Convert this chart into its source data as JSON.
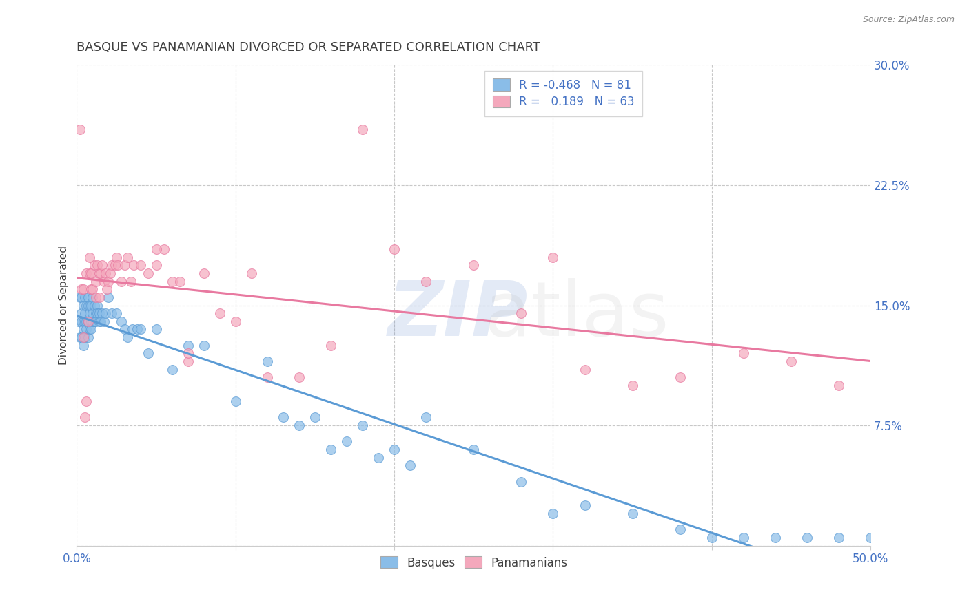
{
  "title": "BASQUE VS PANAMANIAN DIVORCED OR SEPARATED CORRELATION CHART",
  "source": "Source: ZipAtlas.com",
  "ylabel": "Divorced or Separated",
  "xlim": [
    0.0,
    0.5
  ],
  "ylim": [
    0.0,
    0.3
  ],
  "xticks": [
    0.0,
    0.1,
    0.2,
    0.3,
    0.4,
    0.5
  ],
  "yticks": [
    0.0,
    0.075,
    0.15,
    0.225,
    0.3
  ],
  "xticklabels_show": [
    "0.0%",
    "",
    "",
    "",
    "",
    "50.0%"
  ],
  "yticklabels_right": [
    "",
    "7.5%",
    "15.0%",
    "22.5%",
    "30.0%"
  ],
  "legend_r_basque": "-0.468",
  "legend_n_basque": "81",
  "legend_r_panama": "0.189",
  "legend_n_panama": "63",
  "color_basque": "#8abde8",
  "color_panama": "#f4a8bc",
  "color_basque_line": "#5b9bd5",
  "color_panama_line": "#e879a0",
  "grid_color": "#c8c8c8",
  "bg_color": "#ffffff",
  "title_color": "#404040",
  "axis_color": "#4472c4",
  "watermark_color_zip": "#4472c4",
  "watermark_color_atlas": "#b0b0b0",
  "basque_x": [
    0.001,
    0.002,
    0.002,
    0.003,
    0.003,
    0.003,
    0.003,
    0.004,
    0.004,
    0.004,
    0.004,
    0.005,
    0.005,
    0.005,
    0.005,
    0.006,
    0.006,
    0.006,
    0.007,
    0.007,
    0.007,
    0.007,
    0.008,
    0.008,
    0.008,
    0.009,
    0.009,
    0.009,
    0.01,
    0.01,
    0.01,
    0.011,
    0.011,
    0.012,
    0.012,
    0.013,
    0.013,
    0.014,
    0.014,
    0.015,
    0.016,
    0.017,
    0.018,
    0.02,
    0.022,
    0.025,
    0.028,
    0.03,
    0.032,
    0.035,
    0.038,
    0.04,
    0.045,
    0.05,
    0.06,
    0.07,
    0.08,
    0.1,
    0.12,
    0.15,
    0.18,
    0.2,
    0.22,
    0.25,
    0.28,
    0.3,
    0.32,
    0.35,
    0.38,
    0.4,
    0.42,
    0.44,
    0.46,
    0.48,
    0.5,
    0.13,
    0.14,
    0.16,
    0.17,
    0.19,
    0.21
  ],
  "basque_y": [
    0.14,
    0.13,
    0.155,
    0.14,
    0.145,
    0.155,
    0.13,
    0.14,
    0.15,
    0.135,
    0.125,
    0.14,
    0.145,
    0.155,
    0.13,
    0.15,
    0.14,
    0.135,
    0.15,
    0.14,
    0.155,
    0.13,
    0.145,
    0.15,
    0.135,
    0.14,
    0.15,
    0.135,
    0.145,
    0.155,
    0.14,
    0.15,
    0.14,
    0.145,
    0.14,
    0.15,
    0.145,
    0.14,
    0.145,
    0.14,
    0.145,
    0.14,
    0.145,
    0.155,
    0.145,
    0.145,
    0.14,
    0.135,
    0.13,
    0.135,
    0.135,
    0.135,
    0.12,
    0.135,
    0.11,
    0.125,
    0.125,
    0.09,
    0.115,
    0.08,
    0.075,
    0.06,
    0.08,
    0.06,
    0.04,
    0.02,
    0.025,
    0.02,
    0.01,
    0.005,
    0.005,
    0.005,
    0.005,
    0.005,
    0.005,
    0.08,
    0.075,
    0.06,
    0.065,
    0.055,
    0.05
  ],
  "panama_x": [
    0.002,
    0.003,
    0.004,
    0.004,
    0.005,
    0.006,
    0.006,
    0.007,
    0.008,
    0.008,
    0.009,
    0.009,
    0.01,
    0.011,
    0.012,
    0.012,
    0.013,
    0.014,
    0.014,
    0.015,
    0.016,
    0.017,
    0.018,
    0.019,
    0.02,
    0.021,
    0.022,
    0.024,
    0.025,
    0.026,
    0.028,
    0.03,
    0.032,
    0.034,
    0.036,
    0.04,
    0.045,
    0.05,
    0.055,
    0.06,
    0.065,
    0.07,
    0.08,
    0.09,
    0.1,
    0.11,
    0.12,
    0.14,
    0.16,
    0.18,
    0.2,
    0.22,
    0.25,
    0.28,
    0.3,
    0.32,
    0.35,
    0.38,
    0.42,
    0.45,
    0.48,
    0.05,
    0.07
  ],
  "panama_y": [
    0.26,
    0.16,
    0.13,
    0.16,
    0.08,
    0.09,
    0.17,
    0.14,
    0.17,
    0.18,
    0.16,
    0.17,
    0.16,
    0.175,
    0.165,
    0.155,
    0.175,
    0.155,
    0.17,
    0.17,
    0.175,
    0.165,
    0.17,
    0.16,
    0.165,
    0.17,
    0.175,
    0.175,
    0.18,
    0.175,
    0.165,
    0.175,
    0.18,
    0.165,
    0.175,
    0.175,
    0.17,
    0.175,
    0.185,
    0.165,
    0.165,
    0.115,
    0.17,
    0.145,
    0.14,
    0.17,
    0.105,
    0.105,
    0.125,
    0.26,
    0.185,
    0.165,
    0.175,
    0.145,
    0.18,
    0.11,
    0.1,
    0.105,
    0.12,
    0.115,
    0.1,
    0.185,
    0.12
  ]
}
